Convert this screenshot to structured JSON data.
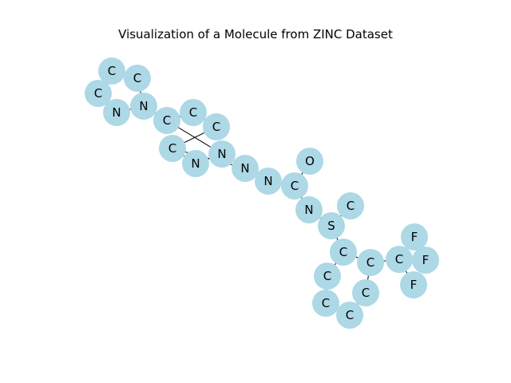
{
  "title": "Visualization of a Molecule from ZINC Dataset",
  "colors": {
    "node": "#add8e6",
    "edge": "#000000",
    "text": "#000000"
  },
  "atoms": [
    {
      "id": 0,
      "label": "C"
    },
    {
      "id": 1,
      "label": "C"
    },
    {
      "id": 2,
      "label": "C"
    },
    {
      "id": 3,
      "label": "N"
    },
    {
      "id": 4,
      "label": "N"
    },
    {
      "id": 5,
      "label": "C"
    },
    {
      "id": 6,
      "label": "C"
    },
    {
      "id": 7,
      "label": "C"
    },
    {
      "id": 8,
      "label": "N"
    },
    {
      "id": 9,
      "label": "N"
    },
    {
      "id": 10,
      "label": "C"
    },
    {
      "id": 11,
      "label": "N"
    },
    {
      "id": 12,
      "label": "N"
    },
    {
      "id": 13,
      "label": "C"
    },
    {
      "id": 14,
      "label": "O"
    },
    {
      "id": 15,
      "label": "N"
    },
    {
      "id": 16,
      "label": "S"
    },
    {
      "id": 17,
      "label": "C"
    },
    {
      "id": 18,
      "label": "C"
    },
    {
      "id": 19,
      "label": "C"
    },
    {
      "id": 20,
      "label": "C"
    },
    {
      "id": 21,
      "label": "C"
    },
    {
      "id": 22,
      "label": "C"
    },
    {
      "id": 23,
      "label": "C"
    },
    {
      "id": 24,
      "label": "C"
    },
    {
      "id": 25,
      "label": "F"
    },
    {
      "id": 26,
      "label": "F"
    },
    {
      "id": 27,
      "label": "F"
    }
  ],
  "bonds": [
    [
      0,
      1
    ],
    [
      0,
      2
    ],
    [
      2,
      3
    ],
    [
      3,
      4
    ],
    [
      1,
      4
    ],
    [
      4,
      5
    ],
    [
      5,
      6
    ],
    [
      6,
      7
    ],
    [
      7,
      10
    ],
    [
      10,
      9
    ],
    [
      9,
      8
    ],
    [
      8,
      5
    ],
    [
      10,
      11
    ],
    [
      11,
      12
    ],
    [
      12,
      13
    ],
    [
      13,
      14
    ],
    [
      13,
      15
    ],
    [
      15,
      16
    ],
    [
      16,
      17
    ],
    [
      16,
      18
    ],
    [
      18,
      19
    ],
    [
      19,
      20
    ],
    [
      20,
      21
    ],
    [
      21,
      22
    ],
    [
      22,
      23
    ],
    [
      23,
      18
    ],
    [
      23,
      24
    ],
    [
      24,
      25
    ],
    [
      24,
      26
    ],
    [
      24,
      27
    ]
  ]
}
